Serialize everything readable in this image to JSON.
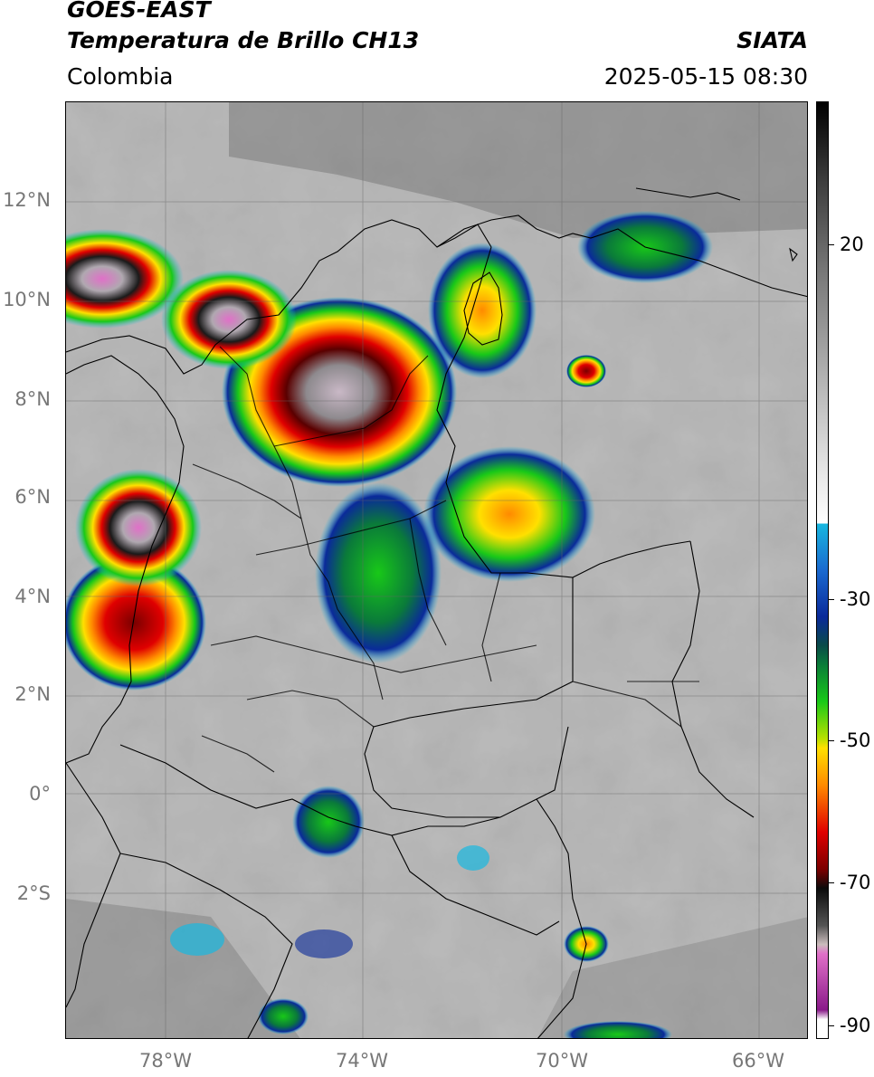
{
  "header": {
    "satellite": "GOES-EAST",
    "product": "Temperatura de Brillo CH13",
    "region": "Colombia",
    "source": "SIATA",
    "datetime": "2025-05-15 08:30"
  },
  "map": {
    "lat_labels": [
      "12°N",
      "10°N",
      "8°N",
      "6°N",
      "4°N",
      "2°N",
      "0°",
      "2°S"
    ],
    "lon_labels": [
      "78°W",
      "74°W",
      "70°W",
      "66°W"
    ]
  },
  "colorbar": {
    "tick_labels": [
      "20",
      "-30",
      "-50",
      "-70",
      "-90"
    ],
    "colors": {
      "cold_pink": "#e070c8",
      "purple": "#8a1a8a",
      "black": "#0b0b0b",
      "dark_red": "#7a0000",
      "red": "#e00000",
      "orange": "#ff8a00",
      "yellow": "#ffe000",
      "green": "#18c818",
      "dark_green": "#0a7a3a",
      "blue": "#0a2a9a",
      "cyan": "#18b8e0",
      "warm_white": "#ffffff"
    }
  }
}
